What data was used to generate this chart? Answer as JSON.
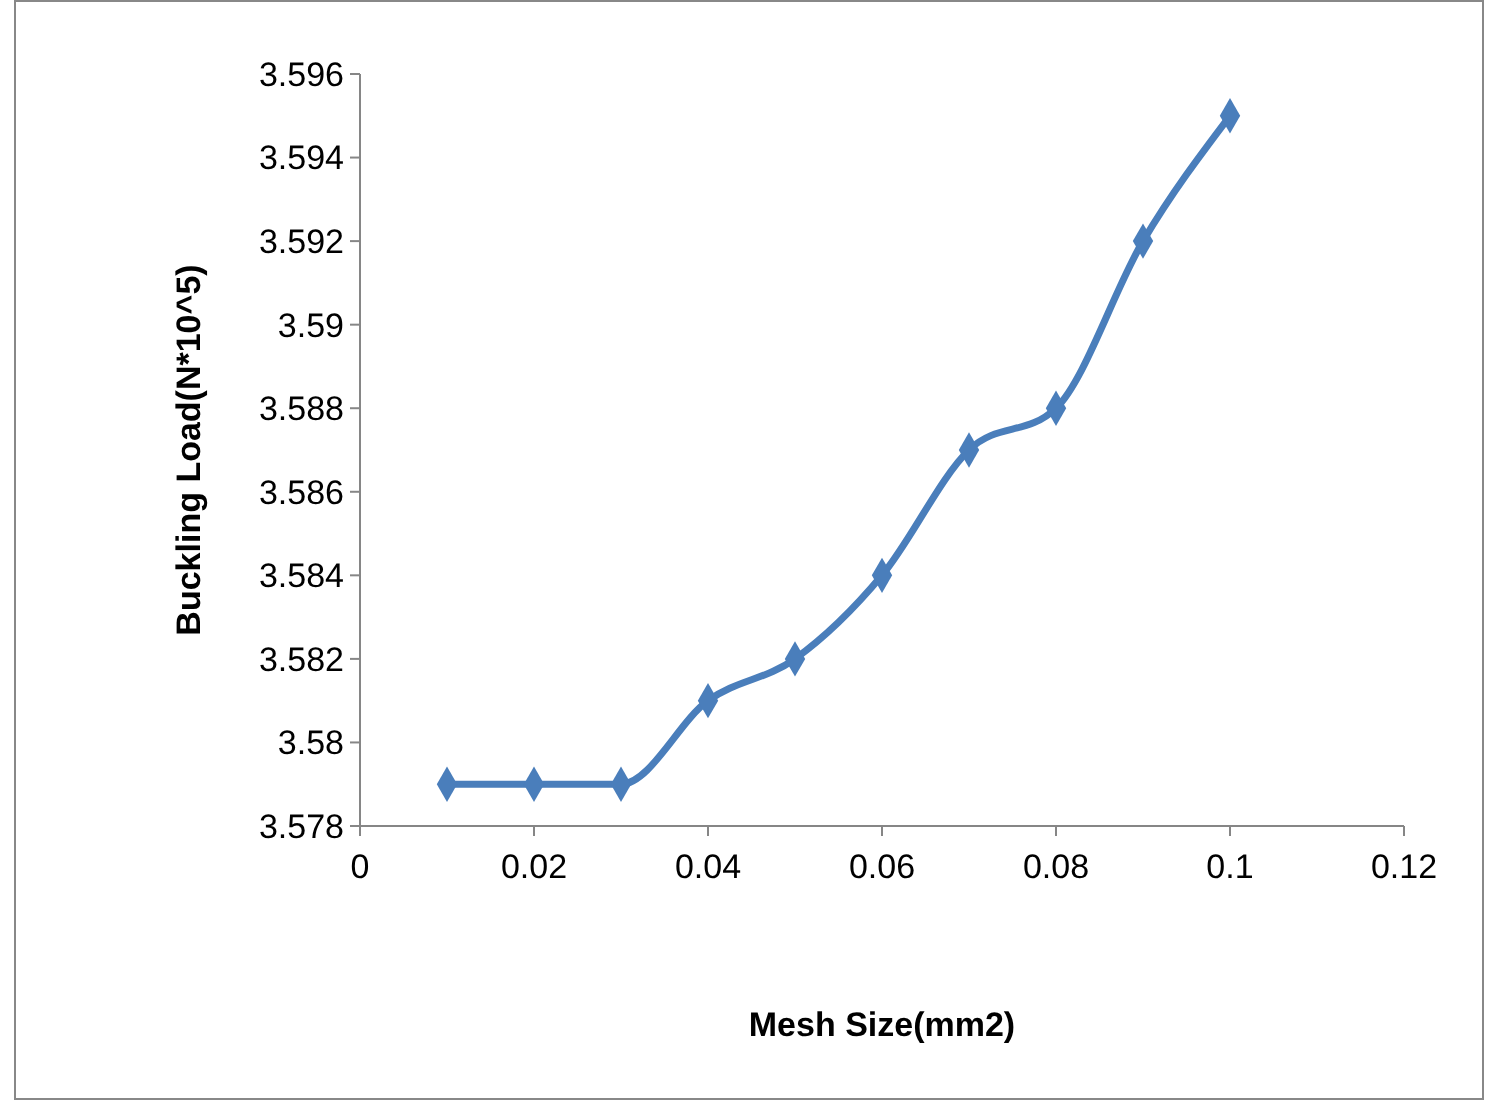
{
  "chart_data": {
    "type": "line",
    "xlabel": "Mesh Size(mm2)",
    "ylabel": "Buckling Load(N*10^5)",
    "x": [
      0.01,
      0.02,
      0.03,
      0.04,
      0.05,
      0.06,
      0.07,
      0.08,
      0.09,
      0.1
    ],
    "series": [
      {
        "color": "#4a7ebb",
        "values": [
          3.579,
          3.579,
          3.579,
          3.581,
          3.582,
          3.584,
          3.587,
          3.588,
          3.592,
          3.595
        ]
      }
    ],
    "xlim": [
      0,
      0.12
    ],
    "xticks": [
      0,
      0.02,
      0.04,
      0.06,
      0.08,
      0.1,
      0.12
    ],
    "ylim": [
      3.578,
      3.596
    ],
    "yticks": [
      3.578,
      3.58,
      3.582,
      3.584,
      3.586,
      3.588,
      3.59,
      3.592,
      3.594,
      3.596
    ],
    "grid": false,
    "marker": "diamond",
    "line_style": "solid"
  }
}
